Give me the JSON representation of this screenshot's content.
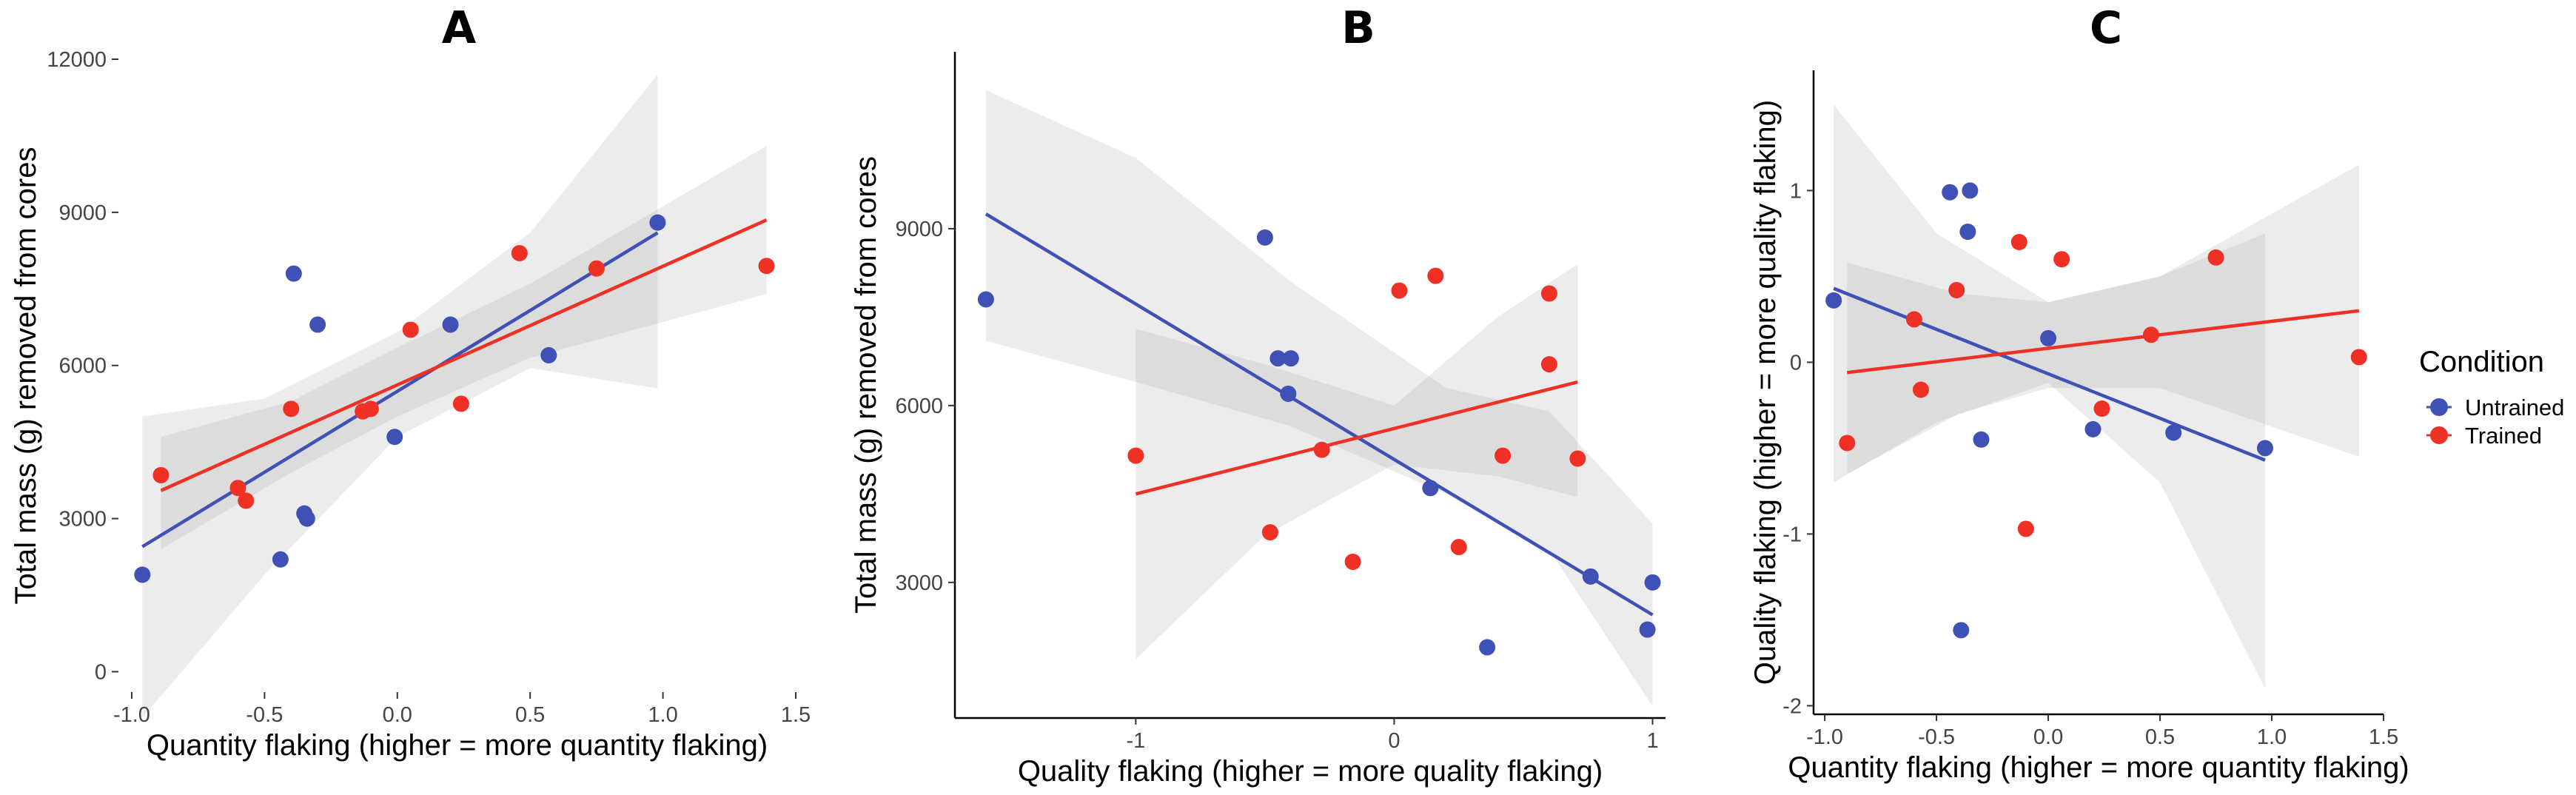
{
  "colors": {
    "untrained": "#3F51B5",
    "trained": "#EE3124",
    "band_outer": "#e4e4e4",
    "band_inner": "#cfcfcf"
  },
  "legend": {
    "title": "Condition",
    "items": [
      {
        "label": "Untrained",
        "color": "#3F51B5"
      },
      {
        "label": "Trained",
        "color": "#EE3124"
      }
    ],
    "placement": "right"
  },
  "chart_data": [
    {
      "type": "scatter",
      "panel": "A",
      "xlabel": "Quantity flaking (higher = more quantity flaking)",
      "ylabel": "Total mass (g) removed from cores",
      "xlim": [
        -1.05,
        1.5
      ],
      "ylim": [
        -400,
        12000
      ],
      "xticks": [
        -1.0,
        -0.5,
        0.0,
        0.5,
        1.0,
        1.5
      ],
      "xtick_labels": [
        "-1.0",
        "-0.5",
        "0.0",
        "0.5",
        "1.0",
        "1.5"
      ],
      "yticks": [
        0,
        3000,
        6000,
        9000,
        12000
      ],
      "ytick_labels": [
        "0",
        "3000",
        "6000",
        "9000",
        "12000"
      ],
      "series": [
        {
          "name": "Untrained",
          "color": "#3F51B5",
          "points": [
            [
              -0.96,
              1900
            ],
            [
              -0.44,
              2200
            ],
            [
              -0.39,
              7800
            ],
            [
              -0.35,
              3100
            ],
            [
              -0.34,
              3000
            ],
            [
              -0.3,
              6800
            ],
            [
              -0.01,
              4600
            ],
            [
              0.2,
              6800
            ],
            [
              0.57,
              6200
            ],
            [
              0.98,
              8800
            ]
          ],
          "fit": {
            "x": [
              -0.96,
              0.98
            ],
            "y": [
              2450,
              8600
            ]
          },
          "band": {
            "x": [
              -0.96,
              -0.5,
              0.0,
              0.5,
              0.98
            ],
            "lower": [
              -900,
              1900,
              4600,
              5950,
              5550
            ],
            "upper": [
              5000,
              5350,
              6650,
              8600,
              11700
            ]
          }
        },
        {
          "name": "Trained",
          "color": "#EE3124",
          "points": [
            [
              -0.89,
              3850
            ],
            [
              -0.6,
              3600
            ],
            [
              -0.57,
              3350
            ],
            [
              -0.4,
              5150
            ],
            [
              -0.13,
              5100
            ],
            [
              -0.1,
              5150
            ],
            [
              0.05,
              6700
            ],
            [
              0.24,
              5250
            ],
            [
              0.46,
              8200
            ],
            [
              0.75,
              7900
            ],
            [
              1.39,
              7950
            ]
          ],
          "fit": {
            "x": [
              -0.89,
              1.39
            ],
            "y": [
              3550,
              8850
            ]
          },
          "band": {
            "x": [
              -0.89,
              -0.4,
              0.0,
              0.5,
              1.39
            ],
            "lower": [
              2400,
              3900,
              5000,
              6150,
              7400
            ],
            "upper": [
              4600,
              5300,
              6350,
              7600,
              10300
            ]
          }
        }
      ]
    },
    {
      "type": "scatter",
      "panel": "B",
      "xlabel": "Quality flaking (higher = more quality flaking)",
      "ylabel": "Total mass (g) removed from cores",
      "xlim": [
        -1.7,
        1.05
      ],
      "ylim": [
        700,
        12000
      ],
      "xticks": [
        -1,
        0,
        1
      ],
      "xtick_labels": [
        "-1",
        "0",
        "1"
      ],
      "yticks": [
        3000,
        6000,
        9000
      ],
      "ytick_labels": [
        "3000",
        "6000",
        "9000"
      ],
      "series": [
        {
          "name": "Untrained",
          "color": "#3F51B5",
          "points": [
            [
              -1.58,
              7800
            ],
            [
              -0.5,
              8850
            ],
            [
              -0.45,
              6800
            ],
            [
              -0.4,
              6800
            ],
            [
              -0.41,
              6200
            ],
            [
              0.14,
              4600
            ],
            [
              0.36,
              1900
            ],
            [
              0.76,
              3100
            ],
            [
              0.98,
              2200
            ],
            [
              1.0,
              3000
            ]
          ],
          "fit": {
            "x": [
              -1.58,
              1.0
            ],
            "y": [
              9250,
              2450
            ]
          },
          "band": {
            "x": [
              -1.58,
              -1.0,
              -0.4,
              0.2,
              0.6,
              1.0
            ],
            "lower": [
              7100,
              6400,
              5650,
              4500,
              3550,
              900
            ],
            "upper": [
              11350,
              10200,
              8100,
              6300,
              5900,
              4000
            ]
          }
        },
        {
          "name": "Trained",
          "color": "#EE3124",
          "points": [
            [
              -1.0,
              5150
            ],
            [
              -0.48,
              3850
            ],
            [
              -0.28,
              5250
            ],
            [
              -0.16,
              3350
            ],
            [
              0.02,
              7950
            ],
            [
              0.16,
              8200
            ],
            [
              0.25,
              3600
            ],
            [
              0.42,
              5150
            ],
            [
              0.6,
              7900
            ],
            [
              0.6,
              6700
            ],
            [
              0.71,
              5100
            ]
          ],
          "fit": {
            "x": [
              -1.0,
              0.71
            ],
            "y": [
              4500,
              6400
            ]
          },
          "band": {
            "x": [
              -1.0,
              -0.5,
              0.0,
              0.4,
              0.71
            ],
            "lower": [
              1700,
              3800,
              5000,
              4800,
              4450
            ],
            "upper": [
              7300,
              6700,
              6000,
              7500,
              8400
            ]
          }
        }
      ]
    },
    {
      "type": "scatter",
      "panel": "C",
      "xlabel": "Quantity flaking (higher = more quantity flaking)",
      "ylabel": "Quality flaking (higher = more quality flaking)",
      "xlim": [
        -1.05,
        1.5
      ],
      "ylim": [
        -2.05,
        1.7
      ],
      "xticks": [
        -1.0,
        -0.5,
        0.0,
        0.5,
        1.0,
        1.5
      ],
      "xtick_labels": [
        "-1.0",
        "-0.5",
        "0.0",
        "0.5",
        "1.0",
        "1.5"
      ],
      "yticks": [
        -2,
        -1,
        0,
        1
      ],
      "ytick_labels": [
        "-2",
        "-1",
        "0",
        "1"
      ],
      "series": [
        {
          "name": "Untrained",
          "color": "#3F51B5",
          "points": [
            [
              -0.96,
              0.36
            ],
            [
              -0.44,
              0.99
            ],
            [
              -0.35,
              1.0
            ],
            [
              -0.36,
              0.76
            ],
            [
              -0.39,
              -1.56
            ],
            [
              -0.3,
              -0.45
            ],
            [
              0.0,
              0.14
            ],
            [
              0.2,
              -0.39
            ],
            [
              0.56,
              -0.41
            ],
            [
              0.97,
              -0.5
            ]
          ],
          "fit": {
            "x": [
              -0.96,
              0.97
            ],
            "y": [
              0.43,
              -0.57
            ]
          },
          "band": {
            "x": [
              -0.96,
              -0.5,
              0.0,
              0.5,
              0.97
            ],
            "lower": [
              -0.7,
              -0.35,
              -0.12,
              -0.7,
              -1.9
            ],
            "upper": [
              1.5,
              0.75,
              0.35,
              0.5,
              0.75
            ]
          }
        },
        {
          "name": "Trained",
          "color": "#EE3124",
          "points": [
            [
              -0.9,
              -0.47
            ],
            [
              -0.6,
              0.25
            ],
            [
              -0.57,
              -0.16
            ],
            [
              -0.41,
              0.42
            ],
            [
              -0.13,
              0.7
            ],
            [
              -0.1,
              -0.97
            ],
            [
              0.06,
              0.6
            ],
            [
              0.24,
              -0.27
            ],
            [
              0.46,
              0.16
            ],
            [
              0.75,
              0.61
            ],
            [
              1.39,
              0.03
            ]
          ],
          "fit": {
            "x": [
              -0.9,
              1.39
            ],
            "y": [
              -0.06,
              0.3
            ]
          },
          "band": {
            "x": [
              -0.9,
              -0.4,
              0.0,
              0.5,
              1.39
            ],
            "lower": [
              -0.65,
              -0.3,
              -0.15,
              -0.15,
              -0.55
            ],
            "upper": [
              0.58,
              0.4,
              0.35,
              0.5,
              1.15
            ]
          }
        }
      ]
    }
  ]
}
